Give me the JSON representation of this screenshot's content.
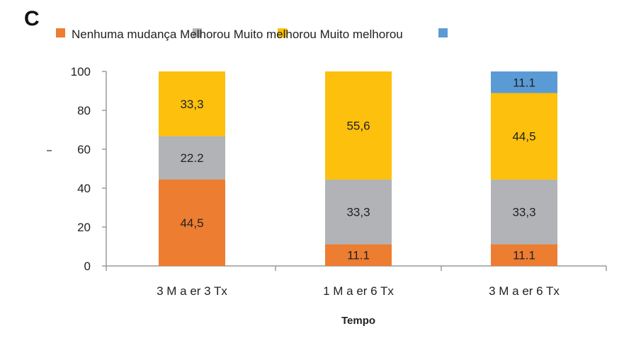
{
  "panel_label": "C",
  "chart_data": {
    "type": "bar",
    "stacked": true,
    "categories": [
      "3 M a er 3 Tx",
      "1 M a er 6 Tx",
      "3 M a er 6 Tx"
    ],
    "series": [
      {
        "name": "Nenhuma mudança",
        "color": "#ed7d31",
        "values": [
          44.5,
          11.1,
          11.1
        ],
        "labels": [
          "44,5",
          "11.1",
          "11.1"
        ]
      },
      {
        "name": "Melhorou",
        "color": "#b1b3b6",
        "values": [
          22.2,
          33.3,
          33.3
        ],
        "labels": [
          "22.2",
          "33,3",
          "33,3"
        ]
      },
      {
        "name": "Muito melhorou",
        "color": "#fcc00d",
        "values": [
          33.3,
          55.6,
          44.5
        ],
        "labels": [
          "33,3",
          "55,6",
          "44,5"
        ]
      },
      {
        "name": "Muito melhorou",
        "color": "#5b9bd5",
        "values": [
          0,
          0,
          11.1
        ],
        "labels": [
          "",
          "",
          "11.1"
        ]
      }
    ],
    "xlabel": "Tempo",
    "ylabel": "",
    "ylim": [
      0,
      100
    ],
    "yticks": [
      0,
      20,
      40,
      60,
      80,
      100
    ],
    "grid": false,
    "legend_position": "top"
  }
}
